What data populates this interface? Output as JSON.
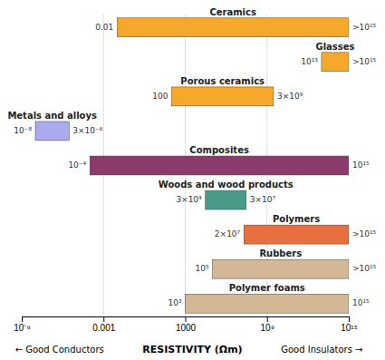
{
  "chart_data": {
    "type": "bar",
    "orientation": "horizontal",
    "log": "x",
    "grid": true,
    "data_labels": true,
    "xlabel": "RESISTIVITY (Ωm)",
    "annotations": [
      "← Good Conductors",
      "Good Insulators →"
    ],
    "categories": [
      "Ceramics",
      "Glasses",
      "Porous ceramics",
      "Metals and alloys",
      "Composites",
      "Woods and wood products",
      "Polymers",
      "Rubbers",
      "Polymer foams"
    ],
    "values": [
      [
        0.01,
        1000000000000000.0
      ],
      [
        10000000000000.0,
        1000000000000000.0
      ],
      [
        100,
        3000000000.0
      ],
      [
        1e-08,
        3e-06
      ],
      [
        0.0001,
        1000000000000000.0
      ],
      [
        30000.0,
        30000000.0
      ],
      [
        20000000.0,
        1000000000000000.0
      ],
      [
        100000.0,
        1000000000000000.0
      ],
      [
        1000.0,
        1000000000000000.0
      ]
    ],
    "value_labels": [
      [
        "0.01",
        ">10¹⁵"
      ],
      [
        "10¹³",
        ">10¹⁵"
      ],
      [
        "100",
        "3×10⁹"
      ],
      [
        "10⁻⁸",
        "3×10⁻⁶"
      ],
      [
        "10⁻⁴",
        "10¹⁵"
      ],
      [
        "3×10⁴",
        "3×10⁷"
      ],
      [
        "2×10⁷",
        ">10¹⁵"
      ],
      [
        "10⁵",
        ">10¹⁵"
      ],
      [
        "10³",
        "10¹⁵"
      ]
    ],
    "colors": [
      "#F5A82A",
      "#F5A82A",
      "#F5A82A",
      "#AAAAEE",
      "#8B3A6B",
      "#4A9A8A",
      "#E87040",
      "#D4B896",
      "#D4B896"
    ],
    "xlim": [
      1e-09,
      1000000000000000.0
    ],
    "xticks": [
      {
        "value": 1e-09,
        "label": "10⁻⁹"
      },
      0.001,
      1000,
      {
        "value": 1000000000.0,
        "label": "10⁹"
      },
      {
        "value": 1000000000000000.0,
        "label": "10¹⁵"
      }
    ]
  }
}
